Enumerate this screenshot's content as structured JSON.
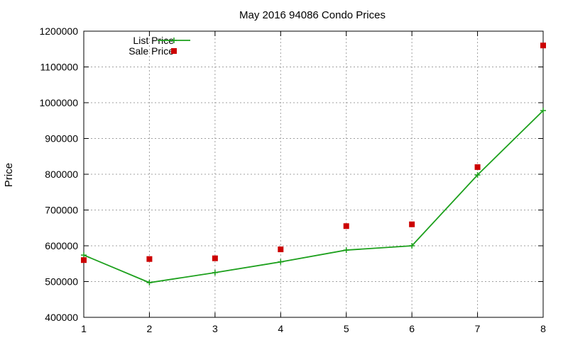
{
  "chart_data": {
    "type": "line",
    "title": "May 2016 94086 Condo Prices",
    "xlabel": "",
    "ylabel": "Price",
    "x": [
      1,
      2,
      3,
      4,
      5,
      6,
      7,
      8
    ],
    "xlim": [
      1,
      8
    ],
    "ylim": [
      400000,
      1200000
    ],
    "x_ticks": [
      1,
      2,
      3,
      4,
      5,
      6,
      7,
      8
    ],
    "y_ticks": [
      400000,
      500000,
      600000,
      700000,
      800000,
      900000,
      1000000,
      1100000,
      1200000
    ],
    "grid": true,
    "legend_position": "top-left",
    "series": [
      {
        "name": "List Price",
        "kind": "line+points",
        "marker": "plus",
        "color": "#1ca01c",
        "values": [
          574000,
          497000,
          525000,
          555000,
          588000,
          600000,
          798000,
          978000
        ]
      },
      {
        "name": "Sale Price",
        "kind": "points",
        "marker": "square",
        "color": "#cc0000",
        "values": [
          560000,
          563000,
          565000,
          590000,
          655000,
          660000,
          820000,
          1160000
        ]
      }
    ]
  }
}
